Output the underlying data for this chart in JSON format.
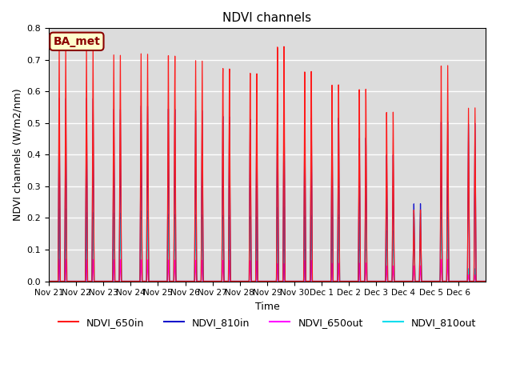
{
  "title": "NDVI channels",
  "ylabel": "NDVI channels (W/m2/nm)",
  "xlabel": "Time",
  "ylim": [
    0.0,
    0.8
  ],
  "background_color": "#dcdcdc",
  "annotation_text": "BA_met",
  "annotation_bg": "#ffffcc",
  "annotation_border": "#8b0000",
  "colors": {
    "NDVI_650in": "#ff1a1a",
    "NDVI_810in": "#1414cc",
    "NDVI_650out": "#ff00ff",
    "NDVI_810out": "#00ddee"
  },
  "xtick_labels": [
    "Nov 21",
    "Nov 22",
    "Nov 23",
    "Nov 24",
    "Nov 25",
    "Nov 26",
    "Nov 27",
    "Nov 28",
    "Nov 29",
    "Nov 30",
    "Dec 1",
    "Dec 2",
    "Dec 3",
    "Dec 4",
    "Dec 5",
    "Dec 6"
  ],
  "peak_650in": [
    0.75,
    0.75,
    0.73,
    0.74,
    0.74,
    0.73,
    0.71,
    0.7,
    0.79,
    0.7,
    0.65,
    0.63,
    0.55,
    0.23,
    0.69,
    0.55
  ],
  "peak_810in": [
    0.58,
    0.585,
    0.555,
    0.57,
    0.565,
    0.565,
    0.55,
    0.545,
    0.6,
    0.545,
    0.54,
    0.47,
    0.41,
    0.25,
    0.51,
    0.5
  ],
  "peak_650out": [
    0.07,
    0.07,
    0.07,
    0.07,
    0.07,
    0.07,
    0.07,
    0.07,
    0.06,
    0.07,
    0.06,
    0.06,
    0.05,
    0.05,
    0.07,
    0.02
  ],
  "peak_810out": [
    0.23,
    0.22,
    0.22,
    0.23,
    0.22,
    0.22,
    0.22,
    0.22,
    0.25,
    0.22,
    0.22,
    0.2,
    0.165,
    0.22,
    0.22,
    0.04
  ],
  "num_days": 16,
  "points_per_day": 200
}
